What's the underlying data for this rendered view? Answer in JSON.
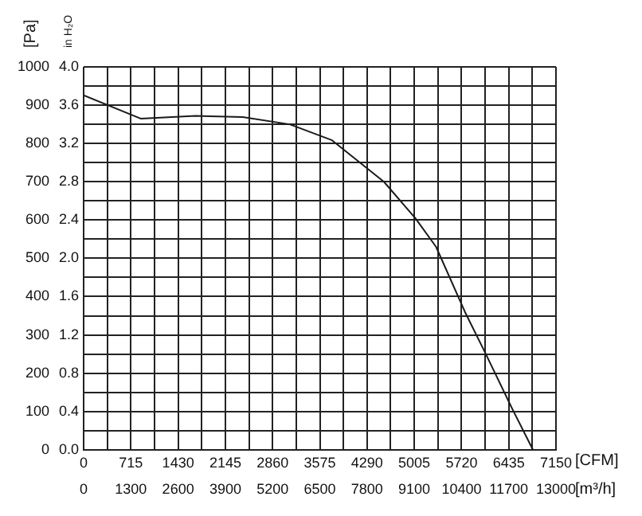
{
  "chart_data": {
    "type": "line",
    "xlabel": "[CFM]",
    "x2label": "[m³/h]",
    "ylabel": "[Pa]",
    "y2label": "in H₂O",
    "x": [
      0,
      862,
      1694,
      2406,
      3119,
      3753,
      4545,
      5020,
      5335,
      5772,
      6088,
      6485,
      6801
    ],
    "series": [
      {
        "color": "#1a1a1a",
        "values": [
          926,
          865,
          872,
          869,
          850,
          809,
          700,
          605,
          530,
          360,
          250,
          108,
          0
        ]
      }
    ],
    "xlim": [
      0,
      7150
    ],
    "xticks": [
      0,
      {
        "value": 357.5,
        "label": null
      },
      715,
      {
        "value": 1072.5,
        "label": null
      },
      1430,
      {
        "value": 1787.5,
        "label": null
      },
      2145,
      {
        "value": 2502.5,
        "label": null
      },
      2860,
      {
        "value": 3217.5,
        "label": null
      },
      3575,
      {
        "value": 3932.5,
        "label": null
      },
      4290,
      {
        "value": 4647.5,
        "label": null
      },
      5005,
      {
        "value": 5362.5,
        "label": null
      },
      5720,
      {
        "value": 6077.5,
        "label": null
      },
      6435,
      {
        "value": 6792.5,
        "label": null
      },
      7150
    ],
    "x2lim": [
      0,
      13000
    ],
    "x2ticks": [
      0,
      1300,
      2600,
      3900,
      5200,
      6500,
      7800,
      9100,
      10400,
      11700,
      13000
    ],
    "ylim": [
      0,
      1000
    ],
    "yticks": [
      0,
      {
        "value": 50,
        "label": null
      },
      100,
      {
        "value": 150,
        "label": null
      },
      200,
      {
        "value": 250,
        "label": null
      },
      300,
      {
        "value": 350,
        "label": null
      },
      400,
      {
        "value": 450,
        "label": null
      },
      500,
      {
        "value": 550,
        "label": null
      },
      600,
      {
        "value": 650,
        "label": null
      },
      700,
      {
        "value": 750,
        "label": null
      },
      800,
      {
        "value": 850,
        "label": null
      },
      900,
      {
        "value": 950,
        "label": null
      },
      1000
    ],
    "y2lim": [
      0,
      4
    ],
    "y2ticks": [
      {
        "value": 0,
        "label": "0.0"
      },
      {
        "value": 0.4,
        "label": "0.4"
      },
      {
        "value": 0.8,
        "label": "0.8"
      },
      {
        "value": 1.2,
        "label": "1.2"
      },
      {
        "value": 1.6,
        "label": "1.6"
      },
      {
        "value": 2,
        "label": "2.0"
      },
      {
        "value": 2.4,
        "label": "2.4"
      },
      {
        "value": 2.8,
        "label": "2.8"
      },
      {
        "value": 3.2,
        "label": "3.2"
      },
      {
        "value": 3.6,
        "label": "3.6"
      },
      {
        "value": 4,
        "label": "4.0"
      }
    ],
    "grid": true
  }
}
